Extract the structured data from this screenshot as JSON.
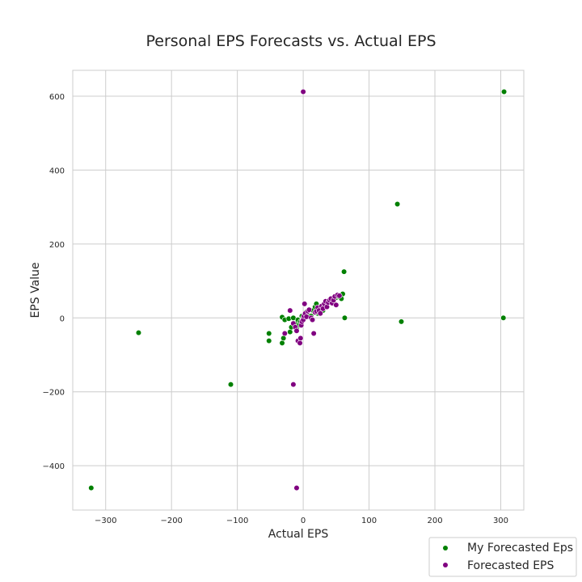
{
  "chart_data": {
    "type": "scatter",
    "title": "Personal EPS Forecasts vs. Actual EPS",
    "xlabel": "Actual EPS",
    "ylabel": "EPS Value",
    "xlim": [
      -350,
      335
    ],
    "ylim": [
      -520,
      670
    ],
    "xticks": [
      -300,
      -200,
      -100,
      0,
      100,
      200,
      300
    ],
    "yticks": [
      -400,
      -200,
      0,
      200,
      400,
      600
    ],
    "xtick_labels": [
      "−300",
      "−200",
      "−100",
      "0",
      "100",
      "200",
      "300"
    ],
    "ytick_labels": [
      "−400",
      "−200",
      "0",
      "200",
      "400",
      "600"
    ],
    "grid": true,
    "legend_position": "lower-right-outside",
    "series": [
      {
        "name": "My Forecasted Eps",
        "color": "#008000",
        "points": [
          [
            -322,
            -460
          ],
          [
            -250,
            -40
          ],
          [
            -110,
            -180
          ],
          [
            -52,
            -42
          ],
          [
            -52,
            -62
          ],
          [
            -32,
            2
          ],
          [
            -32,
            -68
          ],
          [
            -30,
            -55
          ],
          [
            -28,
            -5
          ],
          [
            -22,
            -2
          ],
          [
            -20,
            -38
          ],
          [
            -18,
            -25
          ],
          [
            -15,
            0
          ],
          [
            -12,
            -15
          ],
          [
            -10,
            -28
          ],
          [
            -8,
            -5
          ],
          [
            -6,
            -20
          ],
          [
            -4,
            -10
          ],
          [
            -2,
            5
          ],
          [
            0,
            0
          ],
          [
            2,
            10
          ],
          [
            4,
            15
          ],
          [
            6,
            8
          ],
          [
            8,
            20
          ],
          [
            12,
            5
          ],
          [
            15,
            20
          ],
          [
            18,
            30
          ],
          [
            20,
            38
          ],
          [
            22,
            12
          ],
          [
            24,
            25
          ],
          [
            28,
            32
          ],
          [
            30,
            20
          ],
          [
            34,
            40
          ],
          [
            38,
            42
          ],
          [
            42,
            48
          ],
          [
            46,
            45
          ],
          [
            50,
            55
          ],
          [
            54,
            58
          ],
          [
            58,
            62
          ],
          [
            58,
            52
          ],
          [
            60,
            65
          ],
          [
            62,
            125
          ],
          [
            63,
            0
          ],
          [
            143,
            308
          ],
          [
            149,
            -10
          ],
          [
            305,
            612
          ],
          [
            304,
            0
          ]
        ]
      },
      {
        "name": "Forecasted EPS",
        "color": "#800080",
        "points": [
          [
            0,
            612
          ],
          [
            -10,
            -460
          ],
          [
            -15,
            -180
          ],
          [
            -28,
            -42
          ],
          [
            -20,
            20
          ],
          [
            -15,
            -15
          ],
          [
            -12,
            -25
          ],
          [
            -10,
            -35
          ],
          [
            -8,
            -62
          ],
          [
            -5,
            -68
          ],
          [
            -4,
            -55
          ],
          [
            -3,
            -20
          ],
          [
            -2,
            -10
          ],
          [
            0,
            -5
          ],
          [
            1,
            5
          ],
          [
            2,
            38
          ],
          [
            3,
            12
          ],
          [
            5,
            3
          ],
          [
            7,
            18
          ],
          [
            9,
            22
          ],
          [
            12,
            0
          ],
          [
            14,
            -5
          ],
          [
            16,
            -42
          ],
          [
            18,
            15
          ],
          [
            20,
            18
          ],
          [
            22,
            28
          ],
          [
            24,
            20
          ],
          [
            26,
            12
          ],
          [
            28,
            32
          ],
          [
            30,
            25
          ],
          [
            32,
            38
          ],
          [
            34,
            45
          ],
          [
            36,
            30
          ],
          [
            38,
            42
          ],
          [
            40,
            48
          ],
          [
            42,
            52
          ],
          [
            44,
            40
          ],
          [
            46,
            48
          ],
          [
            48,
            58
          ],
          [
            50,
            35
          ],
          [
            52,
            62
          ],
          [
            55,
            60
          ]
        ]
      }
    ]
  }
}
